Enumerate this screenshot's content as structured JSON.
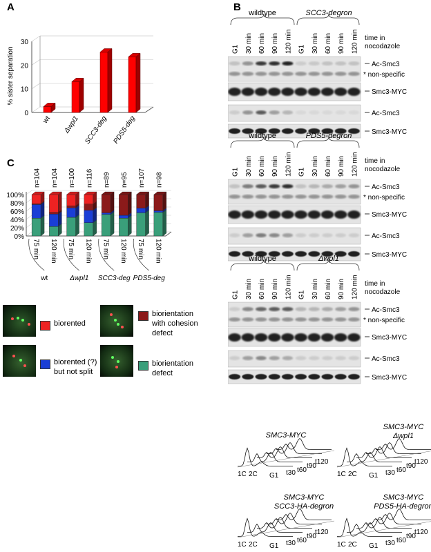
{
  "panels": {
    "A": "A",
    "B": "B",
    "C": "C"
  },
  "panelA": {
    "ylabel": "% sister separation",
    "yticks": [
      "0",
      "10",
      "20",
      "30"
    ],
    "ylim": [
      0,
      30
    ],
    "categories": [
      "wt",
      "Δwpl1",
      "SCC3-deg",
      "PDS5-deg"
    ],
    "values": [
      2.5,
      13,
      25.5,
      23.5
    ],
    "bar_color": "#ff0000"
  },
  "panelC": {
    "yticks": [
      "0%",
      "20%",
      "40%",
      "60%",
      "80%",
      "100%"
    ],
    "n_labels": [
      "n=104",
      "n=104",
      "n=100",
      "n=116",
      "n=89",
      "n=95",
      "n=107",
      "n=98"
    ],
    "time_labels": [
      "75 min",
      "120 min",
      "75 min",
      "120 min",
      "75 min",
      "120 min",
      "75 min",
      "120 min"
    ],
    "groups": [
      "wt",
      "Δwpl1",
      "SCC3-deg",
      "PDS5-deg"
    ],
    "stacks": [
      {
        "green": 43,
        "blue": 33,
        "dark": 2,
        "red": 22
      },
      {
        "green": 23,
        "blue": 30,
        "dark": 4,
        "red": 43
      },
      {
        "green": 45,
        "blue": 23,
        "dark": 5,
        "red": 27
      },
      {
        "green": 32,
        "blue": 30,
        "dark": 15,
        "red": 23
      },
      {
        "green": 52,
        "blue": 4,
        "dark": 44,
        "red": 0
      },
      {
        "green": 43,
        "blue": 7,
        "dark": 50,
        "red": 0
      },
      {
        "green": 56,
        "blue": 11,
        "dark": 33,
        "red": 0
      },
      {
        "green": 57,
        "blue": 4,
        "dark": 39,
        "red": 0
      }
    ],
    "colors": {
      "green": "#3a9f7a",
      "blue": "#1a3ed6",
      "dark": "#8b1a1a",
      "red": "#ee2222"
    }
  },
  "legend": [
    {
      "label": "biorented",
      "color": "#ee2222"
    },
    {
      "label": "biorientation\nwith cohesion\ndefect",
      "color": "#8b1a1a"
    },
    {
      "label": "biorented (?)\nbut not split",
      "color": "#1a3ed6"
    },
    {
      "label": "biorientation\ndefect",
      "color": "#3a9f7a"
    }
  ],
  "blots": [
    {
      "left": "wildtype",
      "right": "SCC3-degron"
    },
    {
      "left": "wildtype",
      "right": "PDS5-degron"
    },
    {
      "left": "wildtype",
      "right": "Δwpl1"
    }
  ],
  "lanes": [
    "G1",
    "30 min",
    "60 min",
    "90 min",
    "120 min",
    "G1",
    "30 min",
    "60 min",
    "90 min",
    "120 min"
  ],
  "time_header": "time in\nnocodazole",
  "row_labels": {
    "ac": "Ac-Smc3",
    "nonspec": "* non-specific",
    "myc": "Smc3-MYC"
  },
  "facs": [
    {
      "title": "SMC3-MYC",
      "xlabels": [
        "1C",
        "2C",
        "G1",
        "t30",
        "t60",
        "t90",
        "t120"
      ]
    },
    {
      "title": "SMC3-MYC\nΔwpl1",
      "xlabels": [
        "1C",
        "2C",
        "G1",
        "t30",
        "t60",
        "t90",
        "t120"
      ]
    },
    {
      "title": "SMC3-MYC\nSCC3-HA-degron",
      "xlabels": [
        "1C",
        "2C",
        "G1",
        "t30",
        "t60",
        "t90",
        "t120"
      ]
    },
    {
      "title": "SMC3-MYC\nPDS5-HA-degron",
      "xlabels": [
        "1C",
        "2C",
        "G1",
        "t30",
        "t60",
        "t90",
        "t120"
      ]
    }
  ]
}
